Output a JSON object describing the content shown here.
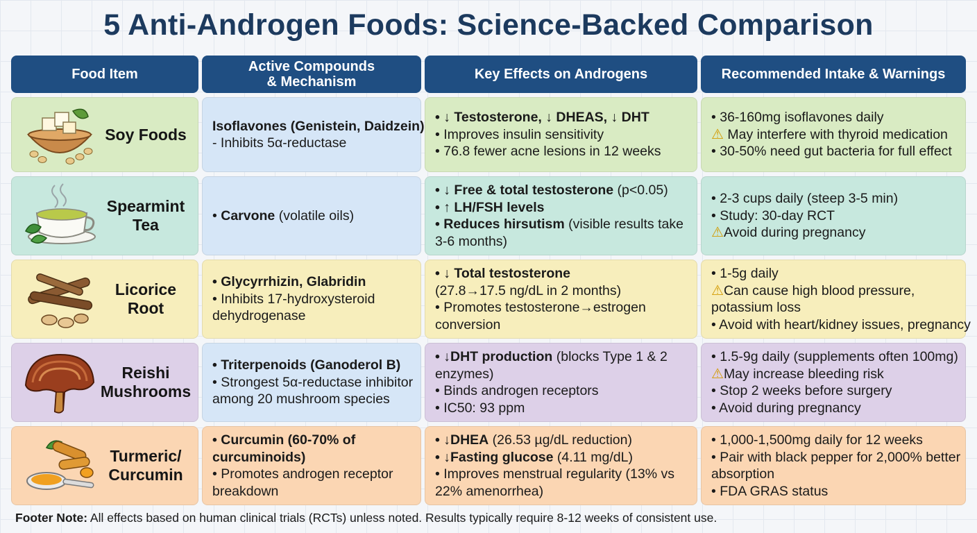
{
  "title": "5 Anti-Androgen Foods: Science-Backed Comparison",
  "headers": {
    "food": "Food Item",
    "compounds": "Active Compounds\n& Mechanism",
    "effects": "Key Effects on Androgens",
    "intake": "Recommended Intake & Warnings"
  },
  "rows": {
    "soy": {
      "name": "Soy Foods",
      "icon": "tofu-bowl-icon",
      "compounds": {
        "l1": "Isoflavones (Genistein, Daidzein)",
        "l2": "- Inhibits 5α-reductase"
      },
      "effects": {
        "l1": "• ↓ Testosterone, ↓ DHEAS, ↓ DHT",
        "l2": "• Improves insulin sensitivity",
        "l3": "• 76.8 fewer acne lesions in 12 weeks"
      },
      "intake": {
        "l1": "• 36-160mg isoflavones daily",
        "l2": " May interfere with thyroid medication",
        "l3": "• 30-50% need gut bacteria for full effect"
      }
    },
    "mint": {
      "name": "Spearmint\nTea",
      "icon": "tea-cup-icon",
      "compounds": {
        "l1_bold": "Carvone",
        "l1_rest": " (volatile oils)"
      },
      "effects": {
        "l1_bold": "• ↓ Free & total testosterone",
        "l1_rest": " (p<0.05)",
        "l2": "• ↑ LH/FSH levels",
        "l3_bold": "• Reduces hirsutism",
        "l3_rest": " (visible results take",
        "l4": "  3-6 months)"
      },
      "intake": {
        "l1": "• 2-3 cups daily (steep 3-5 min)",
        "l2": "• Study: 30-day RCT",
        "l3": "Avoid during pregnancy"
      }
    },
    "lic": {
      "name": "Licorice\nRoot",
      "icon": "licorice-root-icon",
      "compounds": {
        "l1": "• Glycyrrhizin, Glabridin",
        "l2": "• Inhibits 17-hydroxysteroid",
        "l3": "  dehydrogenase"
      },
      "effects": {
        "l1": "• ↓ Total testosterone",
        "l2": "  (27.8→17.5 ng/dL in 2 months)",
        "l3": "• Promotes testosterone→estrogen",
        "l4": "  conversion"
      },
      "intake": {
        "l1": "• 1-5g daily",
        "l2": "Can cause high blood pressure,",
        "l3": "  potassium loss",
        "l4": "• Avoid with heart/kidney issues, pregnancy"
      }
    },
    "rei": {
      "name": "Reishi\nMushrooms",
      "icon": "reishi-mushroom-icon",
      "compounds": {
        "l1": "• Triterpenoids (Ganoderol B)",
        "l2": "• Strongest 5α-reductase inhibitor",
        "l3": "  among 20 mushroom species"
      },
      "effects": {
        "l1_bold": "• ↓DHT production",
        "l1_rest": " (blocks Type 1 & 2",
        "l2": "  enzymes)",
        "l3": "• Binds androgen receptors",
        "l4": "• IC50: 93 ppm"
      },
      "intake": {
        "l1": "• 1.5-9g daily (supplements often 100mg)",
        "l2": "May increase bleeding risk",
        "l3": "• Stop 2 weeks before surgery",
        "l4": "• Avoid during pregnancy"
      }
    },
    "tur": {
      "name": "Turmeric/\nCurcumin",
      "icon": "turmeric-spoon-icon",
      "compounds": {
        "l1": "• Curcumin (60-70% of",
        "l2": "  curcuminoids)",
        "l3": "• Promotes androgen receptor",
        "l4": "  breakdown"
      },
      "effects": {
        "l1_bold": "• ↓DHEA",
        "l1_rest": " (26.53 µg/dL reduction)",
        "l2_bold": "• ↓Fasting glucose",
        "l2_rest": " (4.11 mg/dL)",
        "l3": "• Improves menstrual regularity (13% vs",
        "l4": "  22% amenorrhea)"
      },
      "intake": {
        "l1": "• 1,000-1,500mg daily for 12 weeks",
        "l2": "• Pair with black pepper for 2,000% better",
        "l3": "  absorption",
        "l4": "• FDA GRAS status"
      }
    }
  },
  "warning_icon": "warning-icon",
  "footer": {
    "label": "Footer Note:",
    "text": " All effects based on human clinical trials (RCTs) unless noted. Results typically require 8-12 weeks of consistent use."
  }
}
